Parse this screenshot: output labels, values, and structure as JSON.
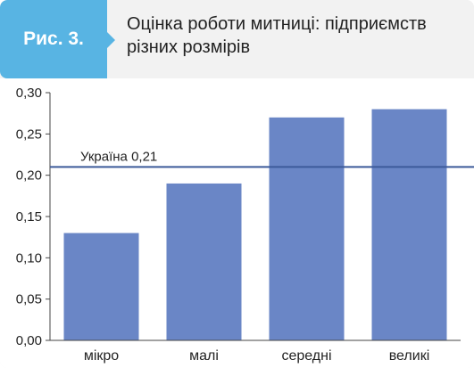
{
  "figure": {
    "label": "Рис. 3.",
    "title": "Оцінка роботи митниці: підприємств різних розмірів"
  },
  "colors": {
    "label_bg": "#58b4e3",
    "bar": "#6a86c6",
    "reference_line": "#3c5a9a"
  },
  "chart_data": {
    "type": "bar",
    "title": "Оцінка роботи митниці: підприємств різних розмірів",
    "categories": [
      "мікро",
      "малі",
      "середні",
      "великі"
    ],
    "values": [
      0.13,
      0.19,
      0.27,
      0.28
    ],
    "xlabel": "",
    "ylabel": "",
    "ylim": [
      0,
      0.3
    ],
    "yticks": [
      "0,00",
      "0,05",
      "0,10",
      "0,15",
      "0,20",
      "0,25",
      "0,30"
    ],
    "reference_line": {
      "label": "Україна 0,21",
      "value": 0.21
    },
    "grid": false,
    "legend": "none"
  }
}
